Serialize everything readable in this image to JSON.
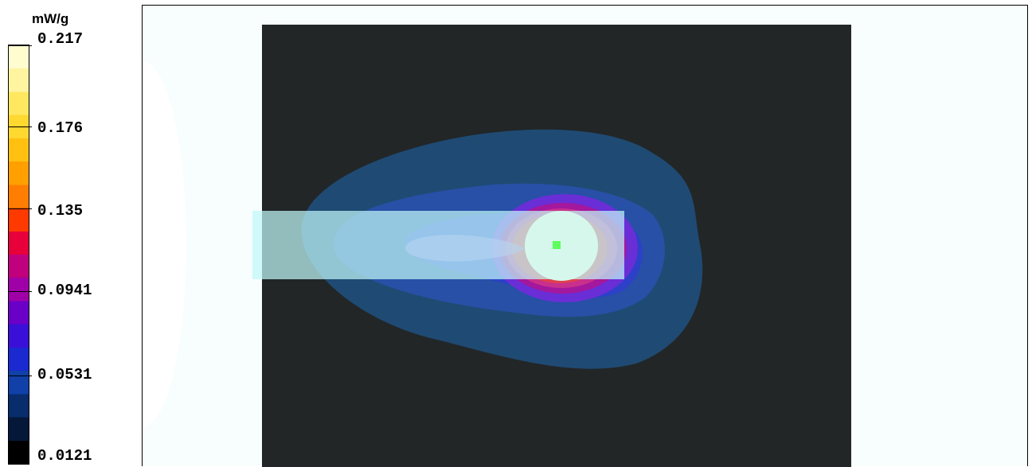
{
  "chart_data": {
    "type": "heatmap",
    "unit": "mW/g",
    "color_scale": {
      "min": 0.0121,
      "max": 0.217,
      "tick_labels": [
        "0.217",
        "0.176",
        "0.135",
        "0.0941",
        "0.0531",
        "0.0121"
      ],
      "colors_top_to_bottom": [
        "#fffcd0",
        "#fff4a0",
        "#ffe860",
        "#ffd830",
        "#ffc010",
        "#ffa000",
        "#ff7d00",
        "#ff3a00",
        "#e8003a",
        "#c0007d",
        "#a000a8",
        "#6a00c8",
        "#3a10d8",
        "#1a2ad0",
        "#1040a8",
        "#082c6c",
        "#06183a",
        "#000000"
      ]
    },
    "background_color": "#222627",
    "contour_colors": {
      "outer": "#1f4a73",
      "level2": "#2750a6",
      "level3": "#2d40c8",
      "level4": "#6a2ed6",
      "level5": "#a3189c",
      "level6": "#c8308c",
      "level7": "#e0404e",
      "core": "#d6f8ec",
      "center_marker": "#5cff5c"
    }
  }
}
